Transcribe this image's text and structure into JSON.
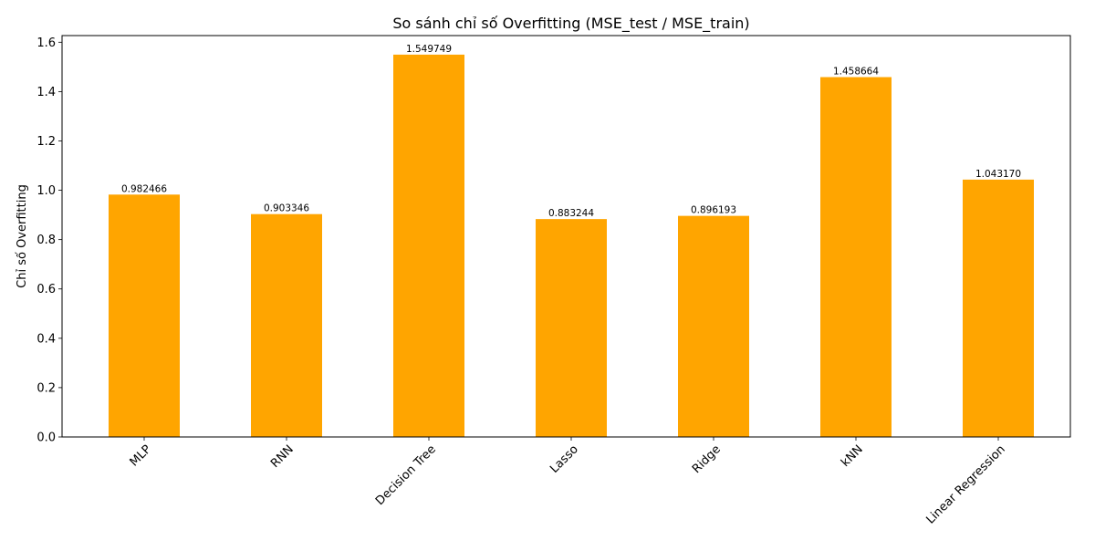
{
  "chart_data": {
    "type": "bar",
    "title": "So sánh chỉ số Overfitting (MSE_test / MSE_train)",
    "xlabel": "",
    "ylabel": "Chỉ số Overfitting",
    "categories": [
      "MLP",
      "RNN",
      "Decision Tree",
      "Lasso",
      "Ridge",
      "kNN",
      "Linear Regression"
    ],
    "values": [
      0.982466,
      0.903346,
      1.549749,
      0.883244,
      0.896193,
      1.458664,
      1.04317
    ],
    "value_labels": [
      "0.982466",
      "0.903346",
      "1.549749",
      "0.883244",
      "0.896193",
      "1.458664",
      "1.043170"
    ],
    "ylim": [
      0,
      1.627
    ],
    "yticks": [
      0.0,
      0.2,
      0.4,
      0.6,
      0.8,
      1.0,
      1.2,
      1.4,
      1.6
    ],
    "ytick_labels": [
      "0.0",
      "0.2",
      "0.4",
      "0.6",
      "0.8",
      "1.0",
      "1.2",
      "1.4",
      "1.6"
    ],
    "bar_color": "#FFA500",
    "grid": false,
    "legend": "none"
  }
}
